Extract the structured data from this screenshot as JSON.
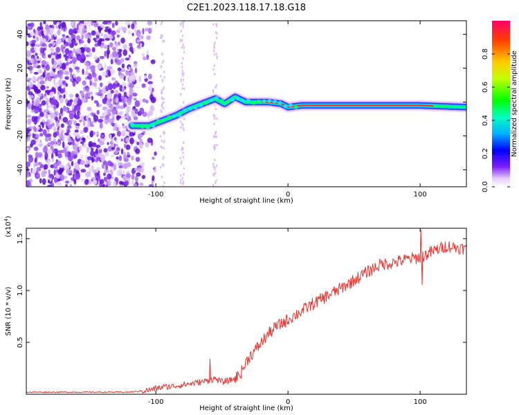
{
  "title": "C2E1.2023.118.17.18.G18",
  "chart_data": [
    {
      "type": "heatmap",
      "xlabel": "Height of straight line (km)",
      "ylabel": "Frequency (Hz)",
      "xlim": [
        -198,
        135
      ],
      "ylim": [
        -50,
        48
      ],
      "xticks": [
        -100,
        0,
        100
      ],
      "yticks": [
        -40,
        -20,
        0,
        20,
        40
      ],
      "colorbar": {
        "label": "Normalized spectral amplitude",
        "range": [
          0,
          1
        ],
        "ticks": [
          0.0,
          0.2,
          0.4,
          0.6,
          0.8
        ]
      },
      "ridge": {
        "x": [
          -118,
          -105,
          -95,
          -85,
          -75,
          -65,
          -55,
          -48,
          -40,
          -32,
          -25,
          -15,
          -5,
          0,
          10,
          30,
          60,
          100,
          135
        ],
        "y": [
          -14,
          -14,
          -11,
          -8,
          -4,
          -1,
          2,
          -1,
          3,
          0,
          0,
          0,
          -1,
          -3,
          -2,
          -2,
          -2,
          -2,
          -3
        ]
      }
    },
    {
      "type": "line",
      "xlabel": "Height of straight line (km)",
      "ylabel": "SNR (10 * v/v)",
      "yscale_label": "(x10",
      "yscale_exp": "4",
      "yscale_close": ")",
      "xlim": [
        -198,
        135
      ],
      "ylim": [
        0,
        1.6
      ],
      "xticks": [
        -100,
        0,
        100
      ],
      "yticks": [
        0.5,
        1.0,
        1.5
      ],
      "series": [
        {
          "color": "#e8302c",
          "x": [
            -198,
            -150,
            -120,
            -105,
            -95,
            -85,
            -75,
            -65,
            -55,
            -50,
            -45,
            -40,
            -35,
            -30,
            -25,
            -20,
            -15,
            -10,
            -5,
            0,
            10,
            20,
            30,
            40,
            50,
            60,
            70,
            80,
            90,
            100,
            110,
            120,
            135
          ],
          "y": [
            0.02,
            0.02,
            0.02,
            0.04,
            0.07,
            0.08,
            0.1,
            0.12,
            0.15,
            0.12,
            0.13,
            0.15,
            0.22,
            0.35,
            0.42,
            0.5,
            0.58,
            0.64,
            0.68,
            0.72,
            0.8,
            0.88,
            0.95,
            1.02,
            1.1,
            1.18,
            1.25,
            1.27,
            1.3,
            1.32,
            1.38,
            1.43,
            1.4
          ]
        }
      ]
    }
  ]
}
